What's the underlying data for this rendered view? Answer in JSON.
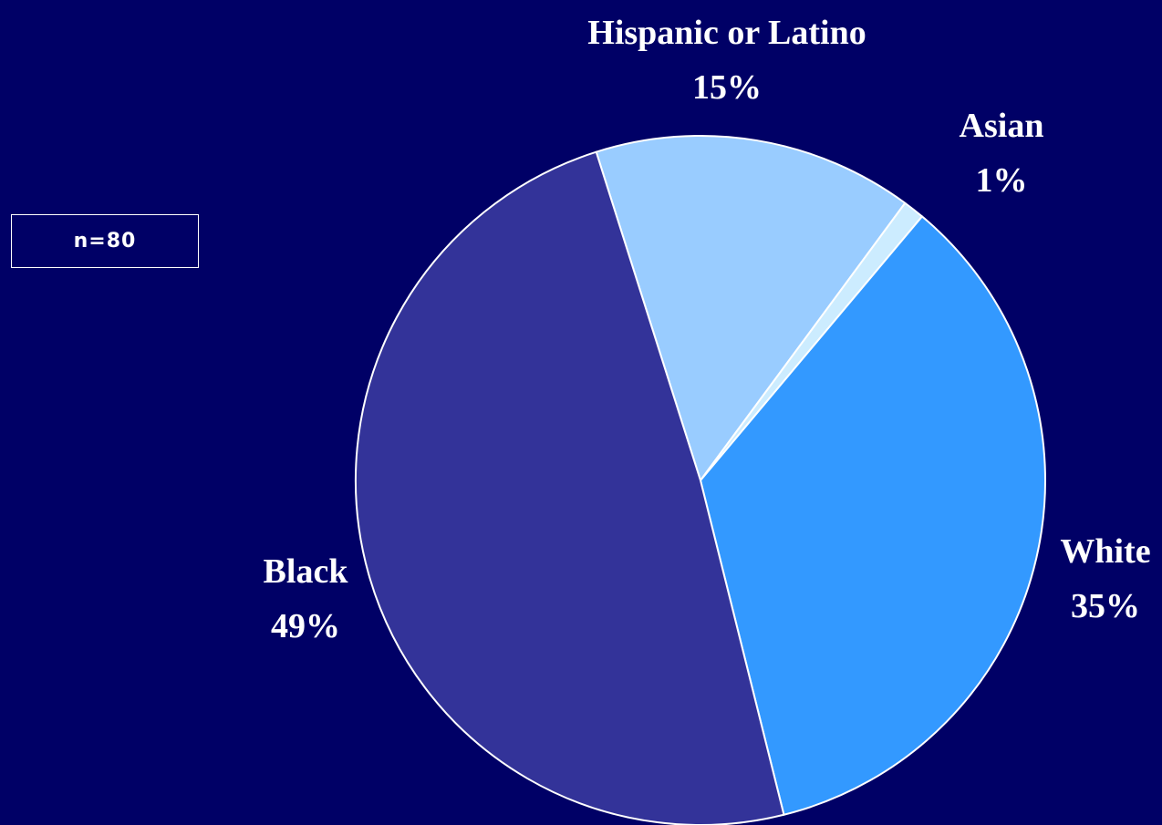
{
  "sample_note": "n=80",
  "chart_data": {
    "type": "pie",
    "categories": [
      "Hispanic or Latino",
      "Asian",
      "White",
      "Black"
    ],
    "values": [
      15,
      1,
      35,
      49
    ],
    "value_labels": [
      "15%",
      "1%",
      "35%",
      "49%"
    ],
    "colors": [
      "#99CCFF",
      "#CCECFF",
      "#3399FF",
      "#333399"
    ],
    "background": "#000066",
    "slice_border_color": "#FFFFFF",
    "legend": "none (labels beside slices)"
  }
}
